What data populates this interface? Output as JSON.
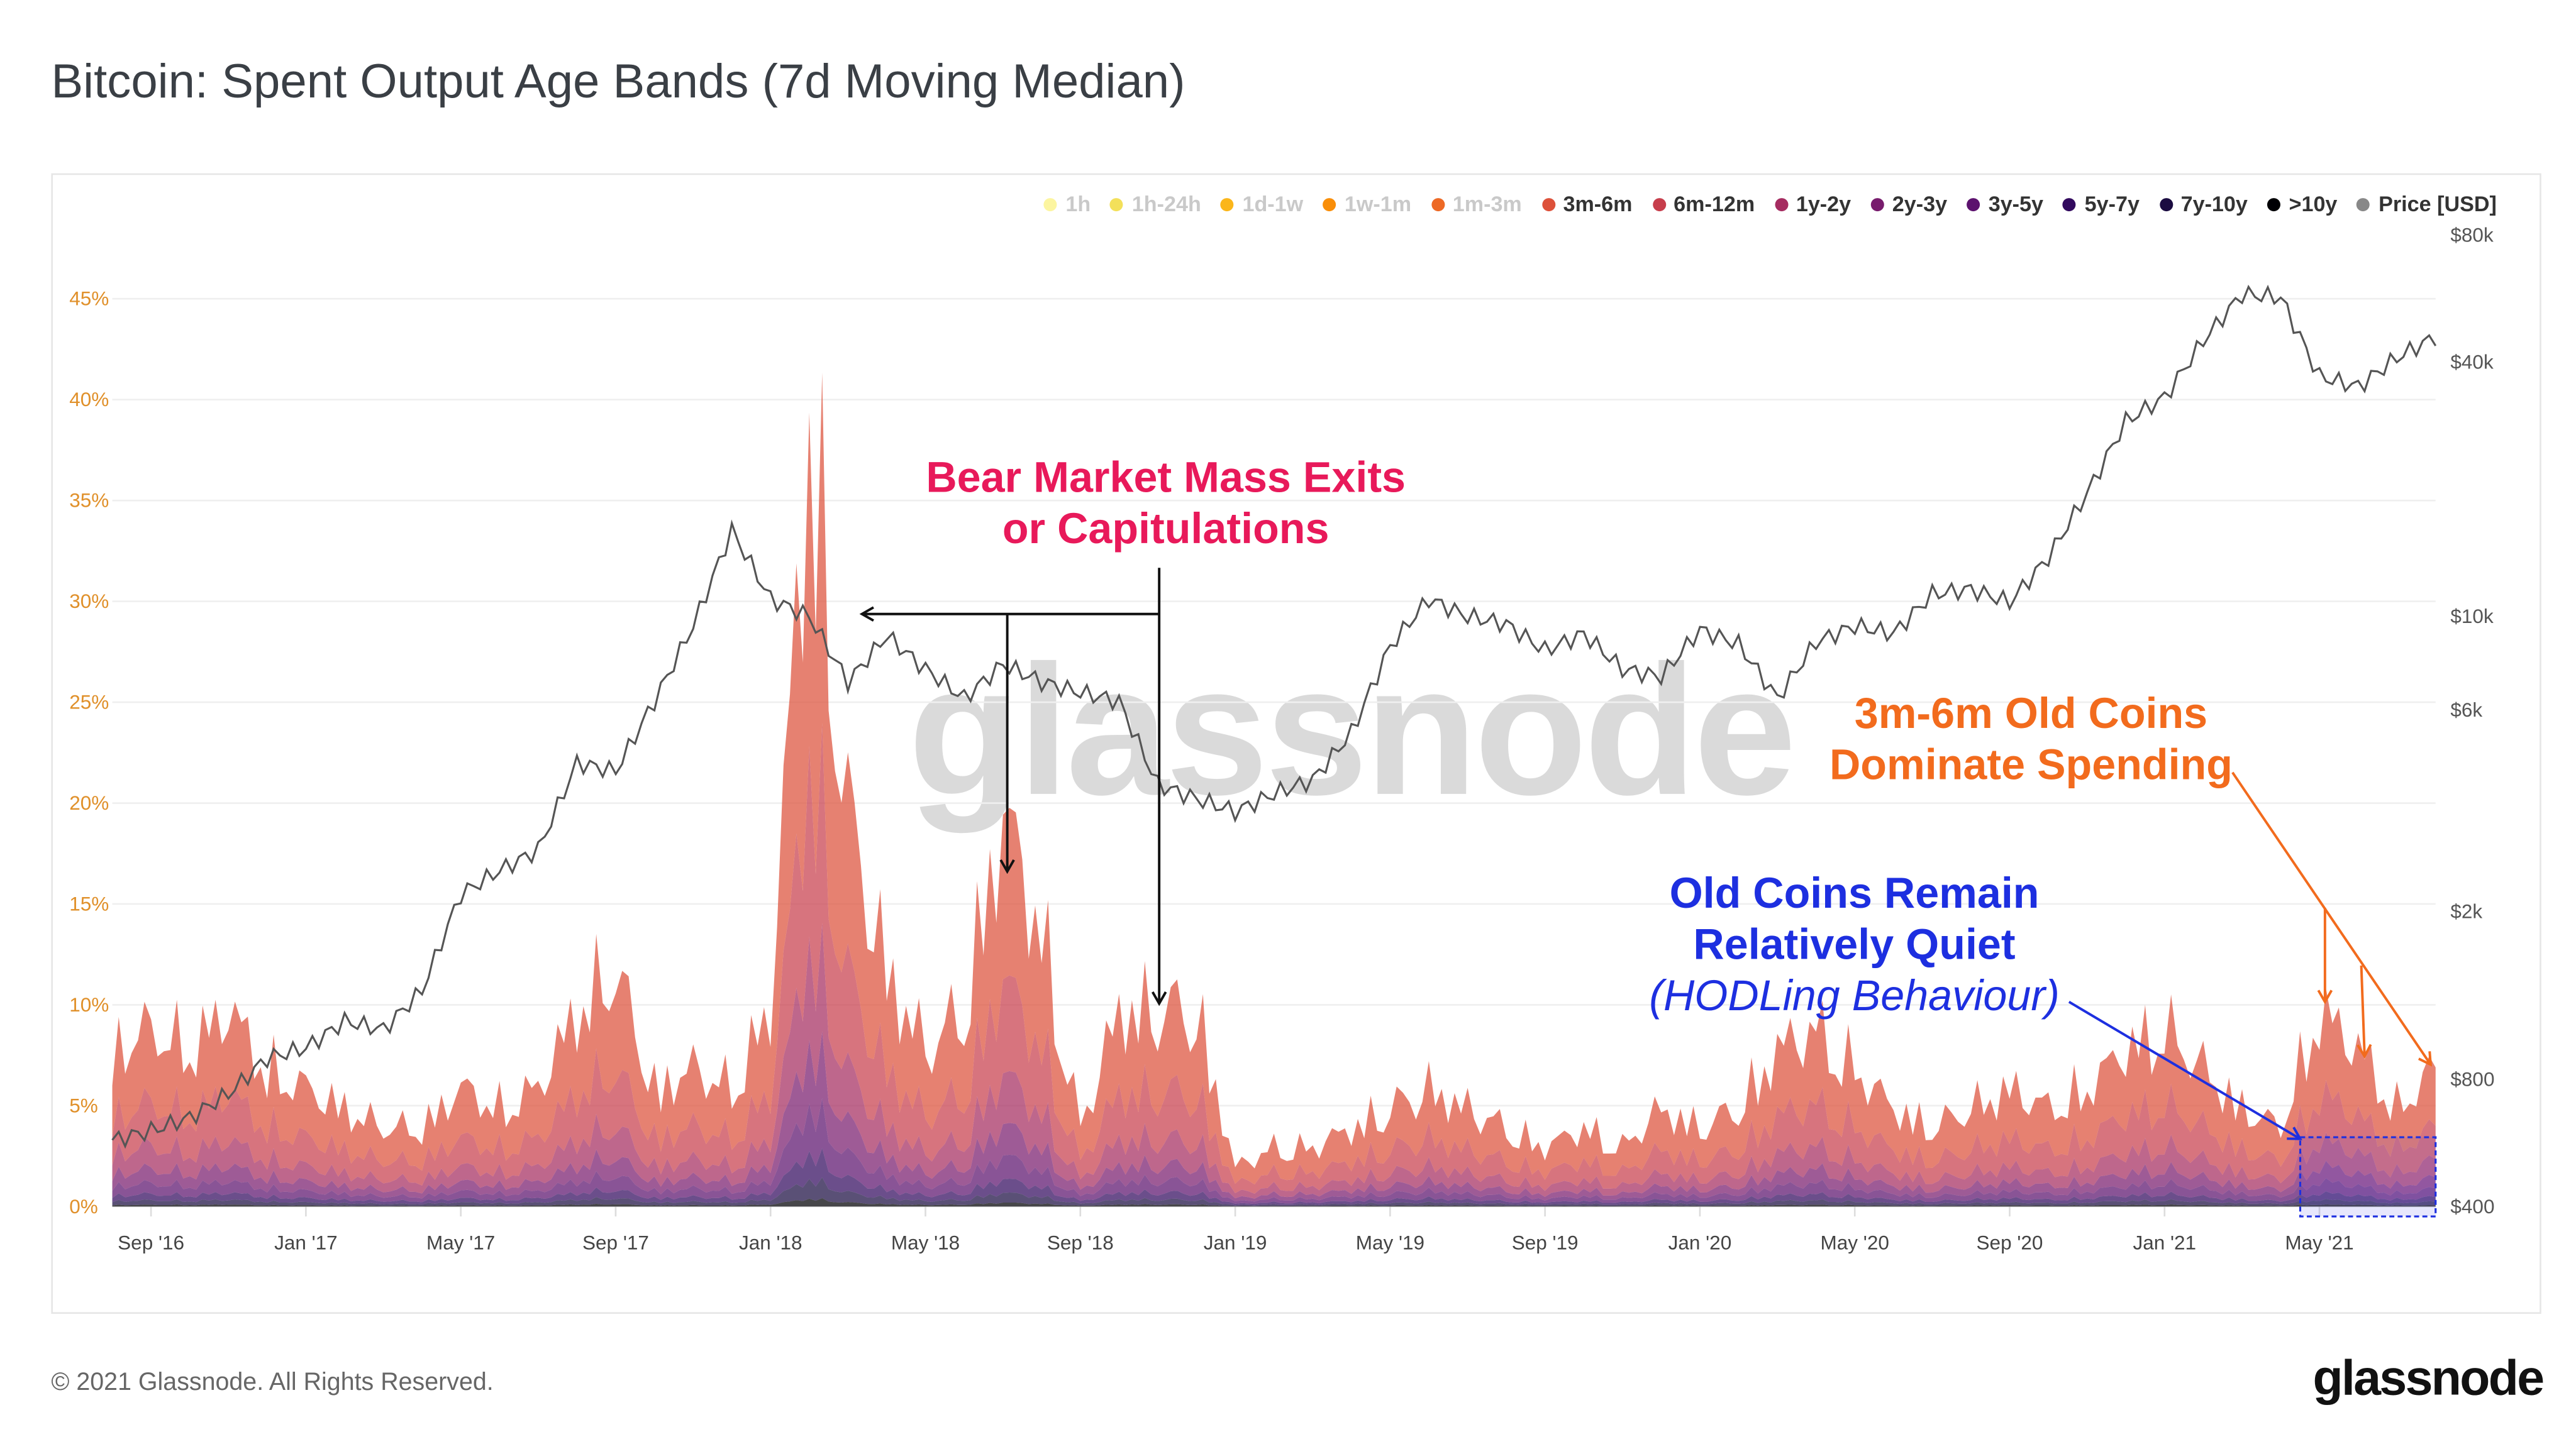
{
  "title": "Bitcoin: Spent Output Age Bands (7d Moving Median)",
  "footer": {
    "copyright": "© 2021 Glassnode. All Rights Reserved.",
    "logo": "glassnode"
  },
  "watermark": "glassnode",
  "legend": [
    {
      "label": "1h",
      "color": "#fcf5a0",
      "active": false
    },
    {
      "label": "1h-24h",
      "color": "#f3e05a",
      "active": false
    },
    {
      "label": "1d-1w",
      "color": "#fbb61a",
      "active": false
    },
    {
      "label": "1w-1m",
      "color": "#f98e09",
      "active": false
    },
    {
      "label": "1m-3m",
      "color": "#ed6925",
      "active": false
    },
    {
      "label": "3m-6m",
      "color": "#dd513a",
      "active": true
    },
    {
      "label": "6m-12m",
      "color": "#c73e4c",
      "active": true
    },
    {
      "label": "1y-2y",
      "color": "#a52c60",
      "active": true
    },
    {
      "label": "2y-3y",
      "color": "#781c6d",
      "active": true
    },
    {
      "label": "3y-5y",
      "color": "#5c126e",
      "active": true
    },
    {
      "label": "5y-7y",
      "color": "#320a5e",
      "active": true
    },
    {
      "label": "7y-10y",
      "color": "#1b0c41",
      "active": true
    },
    {
      "label": ">10y",
      "color": "#000004",
      "active": true
    },
    {
      "label": "Price [USD]",
      "color": "#888888",
      "active": true
    }
  ],
  "annotations": {
    "bear": [
      "Bear Market Mass Exits",
      "or Capitulations"
    ],
    "dominate": [
      "3m-6m Old Coins",
      "Dominate Spending"
    ],
    "quiet": [
      "Old Coins Remain",
      "Relatively Quiet",
      "(HODLing Behaviour)"
    ]
  },
  "chart_data": {
    "type": "area",
    "title": "Bitcoin: Spent Output Age Bands (7d Moving Median)",
    "x_start": "2016-08",
    "x_step": "month",
    "x_ticks": [
      "Sep '16",
      "Jan '17",
      "May '17",
      "Sep '17",
      "Jan '18",
      "May '18",
      "Sep '18",
      "Jan '19",
      "May '19",
      "Sep '19",
      "Jan '20",
      "May '20",
      "Sep '20",
      "Jan '21",
      "May '21"
    ],
    "y_left": {
      "ticks": [
        "0%",
        "5%",
        "10%",
        "15%",
        "20%",
        "25%",
        "30%",
        "35%",
        "40%",
        "45%"
      ],
      "range": [
        0,
        45
      ]
    },
    "y_right": {
      "scale": "log",
      "ticks": [
        {
          "v": 400,
          "l": "$400"
        },
        {
          "v": 800,
          "l": "$800"
        },
        {
          "v": 2000,
          "l": "$2k"
        },
        {
          "v": 6000,
          "l": "$6k"
        },
        {
          "v": 10000,
          "l": "$10k"
        },
        {
          "v": 40000,
          "l": "$40k"
        },
        {
          "v": 80000,
          "l": "$80k"
        }
      ],
      "range": [
        400,
        80000
      ]
    },
    "total_spent_pct": [
      8,
      9,
      8,
      10,
      7,
      6,
      5,
      4,
      4,
      6,
      5,
      6,
      10,
      12,
      6,
      7,
      6,
      10,
      40,
      20,
      12,
      8,
      10,
      20,
      14,
      4,
      10,
      10,
      10,
      2,
      3,
      3,
      4,
      5,
      6,
      5,
      4,
      3,
      4,
      3,
      5,
      4,
      5,
      8,
      9,
      7,
      5,
      4,
      5,
      6,
      5,
      6,
      8,
      9,
      7,
      5,
      4,
      10,
      8,
      5,
      7
    ],
    "band_share": {
      "3m-6m": 0.42,
      "6m-12m": 0.24,
      "1y-2y": 0.13,
      "2y-3y": 0.08,
      "3y-5y": 0.06,
      "5y-7y": 0.035,
      "7y-10y": 0.025,
      ">10y": 0.01
    },
    "price_usd": [
      575,
      605,
      650,
      740,
      900,
      950,
      1100,
      1050,
      1300,
      2200,
      2500,
      2800,
      4500,
      4300,
      6300,
      9500,
      16000,
      11000,
      10000,
      7000,
      9000,
      7500,
      6400,
      7700,
      7000,
      6600,
      6300,
      4000,
      3700,
      3450,
      3800,
      4100,
      5300,
      8500,
      11000,
      10000,
      9600,
      8300,
      9100,
      7500,
      7200,
      9300,
      8600,
      6400,
      8700,
      9500,
      9100,
      11300,
      11600,
      10800,
      13800,
      19600,
      29000,
      33000,
      45000,
      58000,
      57000,
      37000,
      35000,
      41000,
      46000
    ]
  }
}
